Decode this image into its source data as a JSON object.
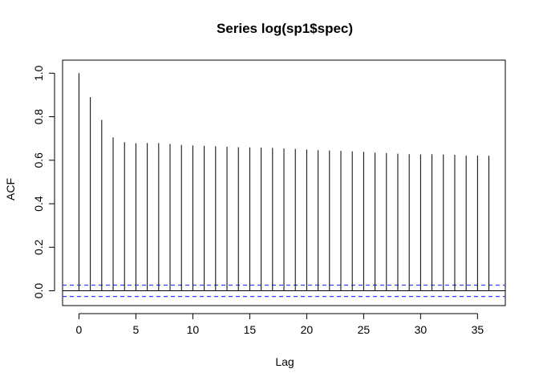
{
  "chart_data": {
    "type": "bar",
    "title": "Series  log(sp1$spec)",
    "xlabel": "Lag",
    "ylabel": "ACF",
    "xlim": [
      -1.44,
      37.44
    ],
    "ylim": [
      -0.068,
      1.06
    ],
    "x_ticks": [
      0,
      5,
      10,
      15,
      20,
      25,
      30,
      35
    ],
    "y_ticks": [
      0.0,
      0.2,
      0.4,
      0.6,
      0.8,
      1.0
    ],
    "y_tick_labels": [
      "0.0",
      "0.2",
      "0.4",
      "0.6",
      "0.8",
      "1.0"
    ],
    "lags": [
      0,
      1,
      2,
      3,
      4,
      5,
      6,
      7,
      8,
      9,
      10,
      11,
      12,
      13,
      14,
      15,
      16,
      17,
      18,
      19,
      20,
      21,
      22,
      23,
      24,
      25,
      26,
      27,
      28,
      29,
      30,
      31,
      32,
      33,
      34,
      35,
      36
    ],
    "acf": [
      1.0,
      0.89,
      0.786,
      0.705,
      0.683,
      0.678,
      0.679,
      0.679,
      0.675,
      0.67,
      0.668,
      0.666,
      0.664,
      0.662,
      0.66,
      0.659,
      0.658,
      0.657,
      0.654,
      0.652,
      0.649,
      0.646,
      0.645,
      0.643,
      0.641,
      0.639,
      0.635,
      0.633,
      0.63,
      0.628,
      0.627,
      0.628,
      0.627,
      0.625,
      0.622,
      0.622,
      0.621
    ],
    "confidence_bound": 0.026,
    "zero_line": 0,
    "colors": {
      "spikes": "#000000",
      "confidence_lines": "#3a3aff",
      "frame": "#000000"
    }
  }
}
